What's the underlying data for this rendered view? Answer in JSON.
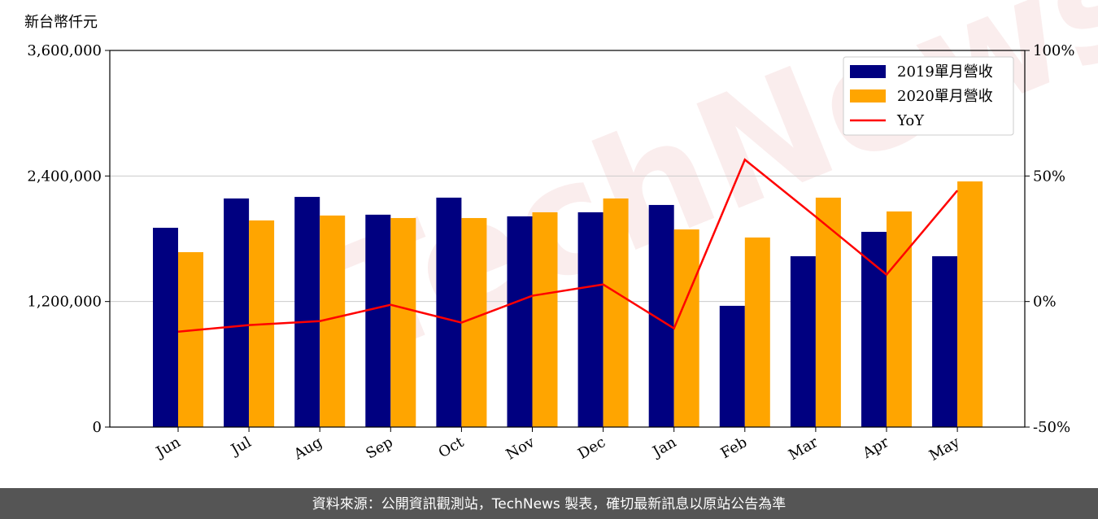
{
  "chart_data": {
    "type": "bar",
    "y_label": "新台幣仟元",
    "watermark": "TechNews",
    "footer": "資料來源：公開資訊觀測站，TechNews 製表，確切最新訊息以原站公告為準",
    "categories": [
      "Jun",
      "Jul",
      "Aug",
      "Sep",
      "Oct",
      "Nov",
      "Dec",
      "Jan",
      "Feb",
      "Mar",
      "Apr",
      "May"
    ],
    "series": [
      {
        "name": "2019單月營收",
        "color": "#000080",
        "values": [
          1905000,
          2185000,
          2200000,
          2030000,
          2193000,
          2014000,
          2053000,
          2123000,
          1159000,
          1633000,
          1866000,
          1633000
        ]
      },
      {
        "name": "2020單月營收",
        "color": "#ffa500",
        "values": [
          1672000,
          1975000,
          2022000,
          1998000,
          1998000,
          2053000,
          2185000,
          1889000,
          1812000,
          2193000,
          2061000,
          2348000
        ]
      },
      {
        "name": "YoY",
        "color": "#ff0000",
        "type": "line",
        "axis": "y2",
        "values": [
          -12.0,
          -9.4,
          -7.8,
          -1.3,
          -8.4,
          2.3,
          6.8,
          -10.7,
          56.5,
          33.8,
          10.7,
          44.2
        ]
      }
    ],
    "ylim": [
      0,
      3600000
    ],
    "yticks": [
      0,
      {
        "value": 1200000,
        "label": "1,200,000"
      },
      {
        "value": 2400000,
        "label": "2,400,000"
      },
      {
        "value": 3600000,
        "label": "3,600,000"
      }
    ],
    "y2lim": [
      -50,
      100
    ],
    "y2ticks": [
      {
        "value": -50,
        "label": "-50%"
      },
      {
        "value": 0,
        "label": "0%"
      },
      {
        "value": 50,
        "label": "50%"
      },
      {
        "value": 100,
        "label": "100%"
      }
    ],
    "grid": true,
    "legend": "upper right"
  }
}
